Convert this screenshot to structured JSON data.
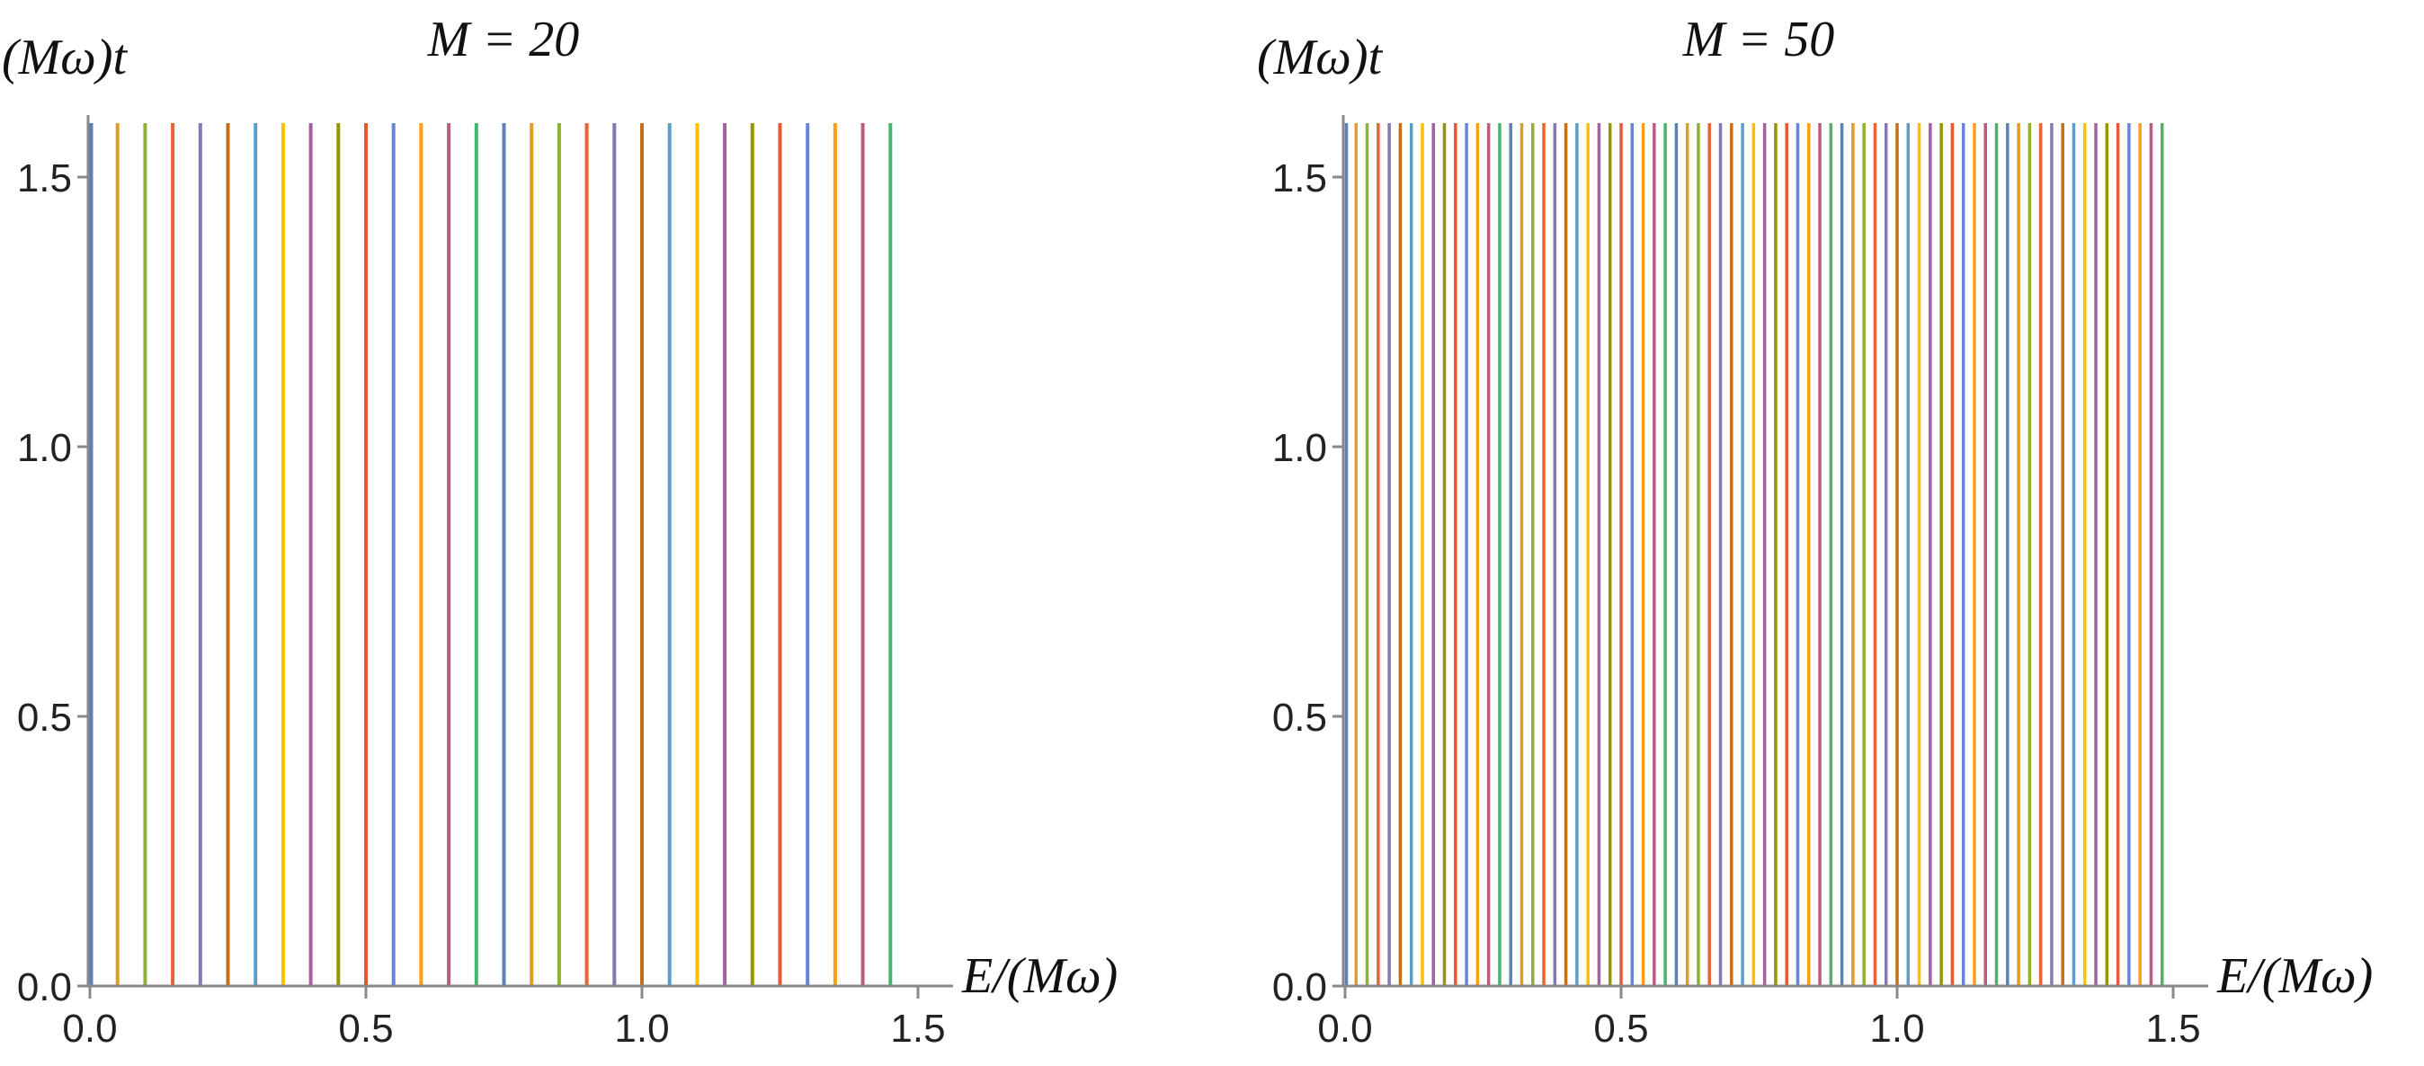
{
  "chart_data": [
    {
      "type": "line",
      "title": "M = 20",
      "xlabel": "E/(Mω)",
      "ylabel": "(Mω)t",
      "xlim": [
        0,
        1.5
      ],
      "ylim": [
        0,
        1.6
      ],
      "x_ticks": [
        "0.0",
        "0.5",
        "1.0",
        "1.5"
      ],
      "y_ticks": [
        "0.0",
        "0.5",
        "1.0",
        "1.5"
      ],
      "line_y_range": [
        0,
        1.6
      ],
      "line_positions": [
        0.0,
        0.05,
        0.1,
        0.15,
        0.2,
        0.25,
        0.3,
        0.35,
        0.4,
        0.45,
        0.5,
        0.55,
        0.6,
        0.65,
        0.7,
        0.75,
        0.8,
        0.85,
        0.9,
        0.95,
        1.0,
        1.05,
        1.1,
        1.15,
        1.2,
        1.25,
        1.3,
        1.35,
        1.4,
        1.45
      ],
      "grid": false,
      "legend": "none"
    },
    {
      "type": "line",
      "title": "M = 50",
      "xlabel": "E/(Mω)",
      "ylabel": "(Mω)t",
      "xlim": [
        0,
        1.5
      ],
      "ylim": [
        0,
        1.6
      ],
      "x_ticks": [
        "0.0",
        "0.5",
        "1.0",
        "1.5"
      ],
      "y_ticks": [
        "0.0",
        "0.5",
        "1.0",
        "1.5"
      ],
      "line_y_range": [
        0,
        1.6
      ],
      "line_positions": [
        0.0,
        0.02,
        0.04,
        0.06,
        0.08,
        0.1,
        0.12,
        0.14,
        0.16,
        0.18,
        0.2,
        0.22,
        0.24,
        0.26,
        0.28,
        0.3,
        0.32,
        0.34,
        0.36,
        0.38,
        0.4,
        0.42,
        0.44,
        0.46,
        0.48,
        0.5,
        0.52,
        0.54,
        0.56,
        0.58,
        0.6,
        0.62,
        0.64,
        0.66,
        0.68,
        0.7,
        0.72,
        0.74,
        0.76,
        0.78,
        0.8,
        0.82,
        0.84,
        0.86,
        0.88,
        0.9,
        0.92,
        0.94,
        0.96,
        0.98,
        1.0,
        1.02,
        1.04,
        1.06,
        1.08,
        1.1,
        1.12,
        1.14,
        1.16,
        1.18,
        1.2,
        1.22,
        1.24,
        1.26,
        1.28,
        1.3,
        1.32,
        1.34,
        1.36,
        1.38,
        1.4,
        1.42,
        1.44,
        1.46,
        1.48
      ],
      "grid": false,
      "legend": "none"
    }
  ],
  "colors": {
    "series_cycle": [
      "#5e81b5",
      "#e19c24",
      "#8fb032",
      "#eb6235",
      "#8778b3",
      "#c56e1a",
      "#5d9ec7",
      "#ffbf00",
      "#a5609d",
      "#929600",
      "#e95536",
      "#6685d9",
      "#f89f13",
      "#bc5b80",
      "#47b66d"
    ],
    "axis": "#888888",
    "text": "#222222"
  }
}
